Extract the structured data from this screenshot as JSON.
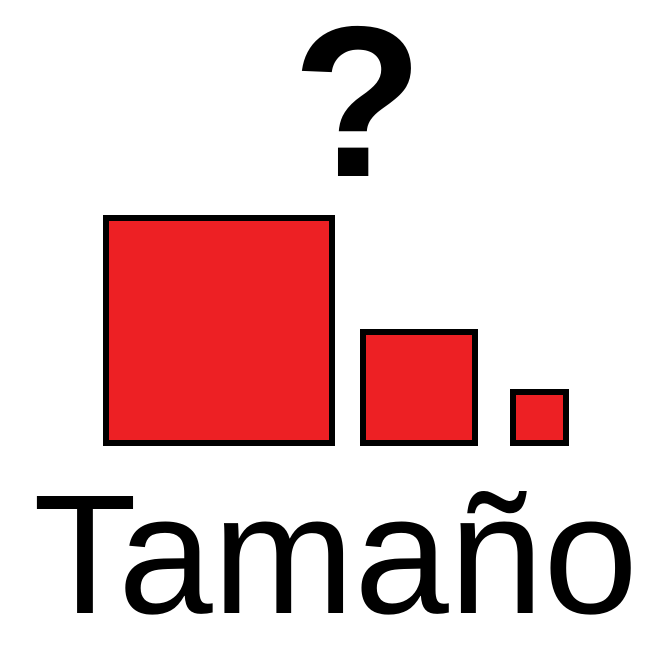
{
  "question_symbol": "?",
  "word": "Tamaño",
  "colors": {
    "square_fill": "#ed2024",
    "outline": "#000000",
    "text": "#000000",
    "background": "#ffffff"
  },
  "icons": [
    "question-mark-icon",
    "large-square-icon",
    "medium-square-icon",
    "small-square-icon"
  ]
}
